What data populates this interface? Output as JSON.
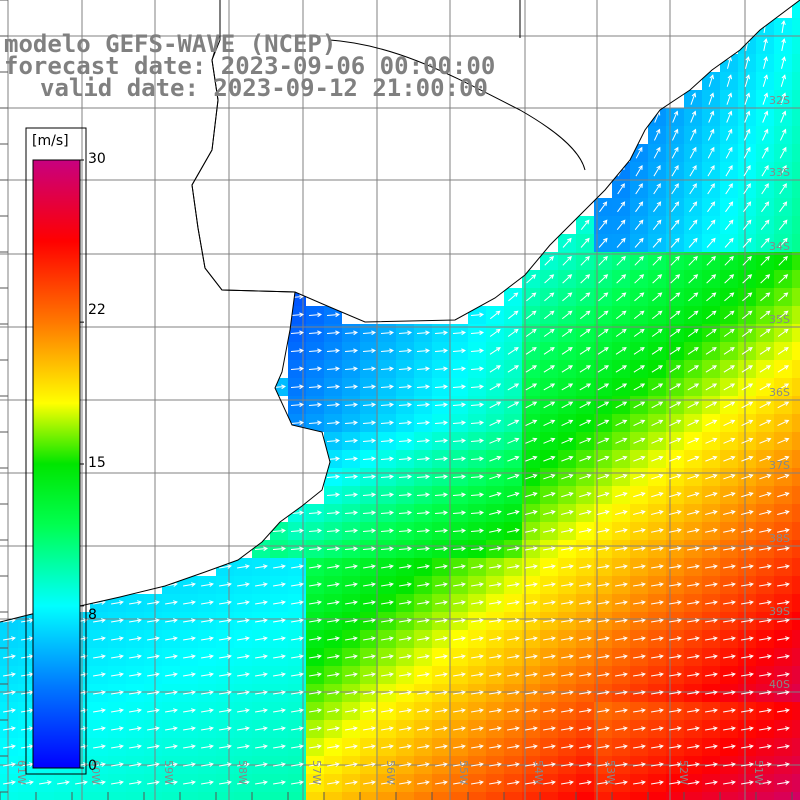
{
  "title": {
    "model": "modelo GEFS-WAVE (NCEP)",
    "forecast": "forecast date: 2023-09-06 00:00:00",
    "valid": "valid date: 2023-09-12 21:00:00"
  },
  "colorbar": {
    "unit": "[m/s]",
    "ticks": [
      "30",
      "22",
      "15",
      "8",
      "0"
    ],
    "tick_values": [
      30,
      22,
      15,
      8,
      0
    ],
    "colors": [
      "#0000ff",
      "#00aaff",
      "#00ffff",
      "#00ff00",
      "#ffff00",
      "#ff8800",
      "#ff0000",
      "#c00080"
    ]
  },
  "map": {
    "variable": "wind speed",
    "lat_labels": [
      "32S",
      "33S",
      "34S",
      "35S",
      "36S",
      "37S",
      "38S",
      "39S",
      "40S"
    ],
    "lon_labels": [
      "61W",
      "60W",
      "59W",
      "58W",
      "57W",
      "56W",
      "55W",
      "54W",
      "53W",
      "52W",
      "51W"
    ],
    "land_color": "#ffffff",
    "grid_color": "#808080",
    "arrow_color": "#ffffff"
  }
}
